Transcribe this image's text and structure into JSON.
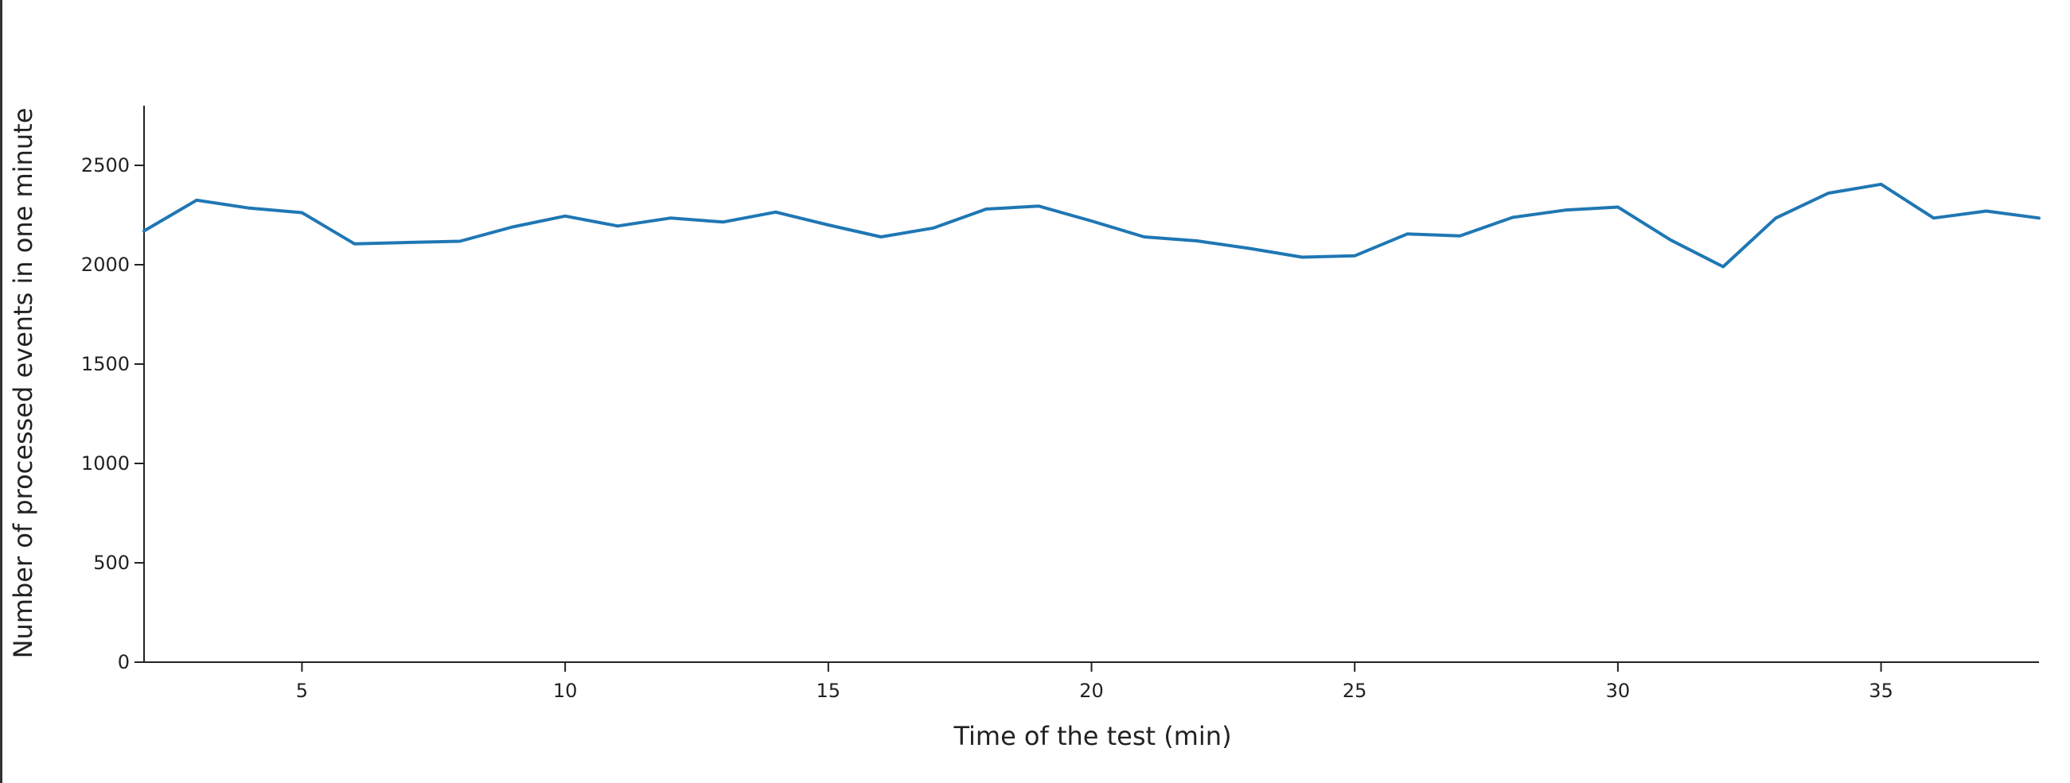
{
  "chart_data": {
    "type": "line",
    "title": "",
    "xlabel": "Time of the test (min)",
    "ylabel": "Number of processed events in one minute",
    "xlim": [
      2,
      38
    ],
    "ylim": [
      0,
      2800
    ],
    "x_ticks": [
      5,
      10,
      15,
      20,
      25,
      30,
      35
    ],
    "y_ticks": [
      0,
      500,
      1000,
      1500,
      2000,
      2500
    ],
    "grid": false,
    "legend": "none",
    "series_color": "#1f77b4",
    "series": [
      {
        "x": [
          2,
          3,
          4,
          5,
          6,
          7,
          8,
          9,
          10,
          11,
          12,
          13,
          14,
          15,
          16,
          17,
          18,
          19,
          20,
          21,
          22,
          23,
          24,
          25,
          26,
          27,
          28,
          29,
          30,
          31,
          32,
          33,
          34,
          35,
          36,
          37,
          38
        ],
        "values": [
          2170,
          2325,
          2285,
          2262,
          2105,
          2112,
          2118,
          2190,
          2245,
          2195,
          2235,
          2215,
          2265,
          2200,
          2140,
          2185,
          2280,
          2295,
          2220,
          2140,
          2120,
          2082,
          2038,
          2045,
          2155,
          2145,
          2238,
          2275,
          2290,
          2125,
          1990,
          2235,
          2360,
          2405,
          2235,
          2270,
          2235
        ]
      }
    ]
  }
}
